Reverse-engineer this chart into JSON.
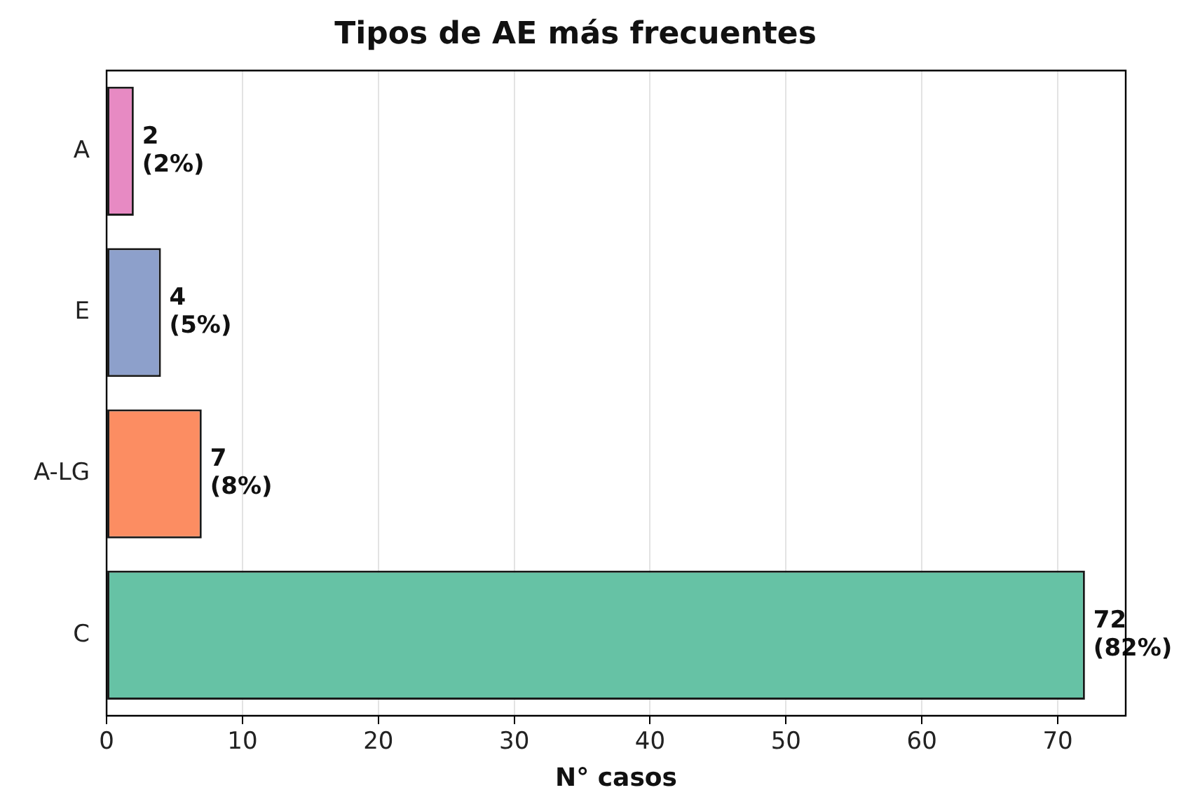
{
  "chart_data": {
    "type": "bar",
    "orientation": "horizontal",
    "title": "Tipos de AE más frecuentes",
    "xlabel": "N° casos",
    "categories": [
      "A",
      "E",
      "A-LG",
      "C"
    ],
    "values": [
      2,
      4,
      7,
      72
    ],
    "colors": [
      "#e78ac3",
      "#8da0cb",
      "#fc8d62",
      "#66c2a5"
    ],
    "value_labels": [
      "2\n(2%)",
      "4\n(5%)",
      "7\n(8%)",
      "72\n(82%)"
    ],
    "xlim": [
      0,
      75
    ],
    "xticks": [
      0,
      10,
      20,
      30,
      40,
      50,
      60,
      70
    ],
    "grid": "x"
  }
}
